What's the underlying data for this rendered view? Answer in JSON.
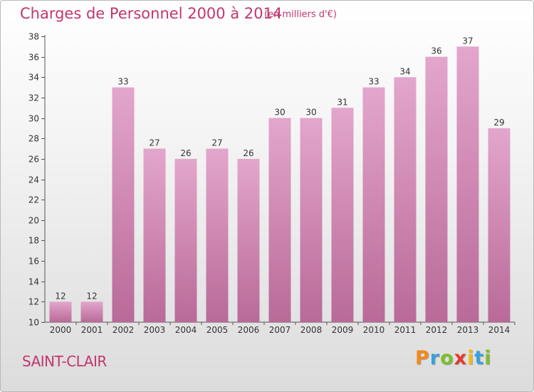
{
  "header": {
    "title": "Charges de Personnel 2000 à 2014",
    "subtitle": "(en milliers d'€)"
  },
  "footer": {
    "town": "SAINT-CLAIR",
    "logo_text": "Proxiti"
  },
  "colors": {
    "title": "#c2366f",
    "bar_light": "#e3a6cc",
    "bar_dark": "#b96a98",
    "axis": "#555555"
  },
  "chart_data": {
    "type": "bar",
    "title": "Charges de Personnel 2000 à 2014",
    "subtitle": "(en milliers d'€)",
    "categories": [
      "2000",
      "2001",
      "2002",
      "2003",
      "2004",
      "2005",
      "2006",
      "2007",
      "2008",
      "2009",
      "2010",
      "2011",
      "2012",
      "2013",
      "2014"
    ],
    "values": [
      12,
      12,
      33,
      27,
      26,
      27,
      26,
      30,
      30,
      31,
      33,
      34,
      36,
      37,
      29
    ],
    "ylim": [
      10,
      38
    ],
    "yticks": [
      10,
      12,
      14,
      16,
      18,
      20,
      22,
      24,
      26,
      28,
      30,
      32,
      34,
      36,
      38
    ],
    "xlabel": "",
    "ylabel": "",
    "grid": false,
    "legend": "none"
  }
}
